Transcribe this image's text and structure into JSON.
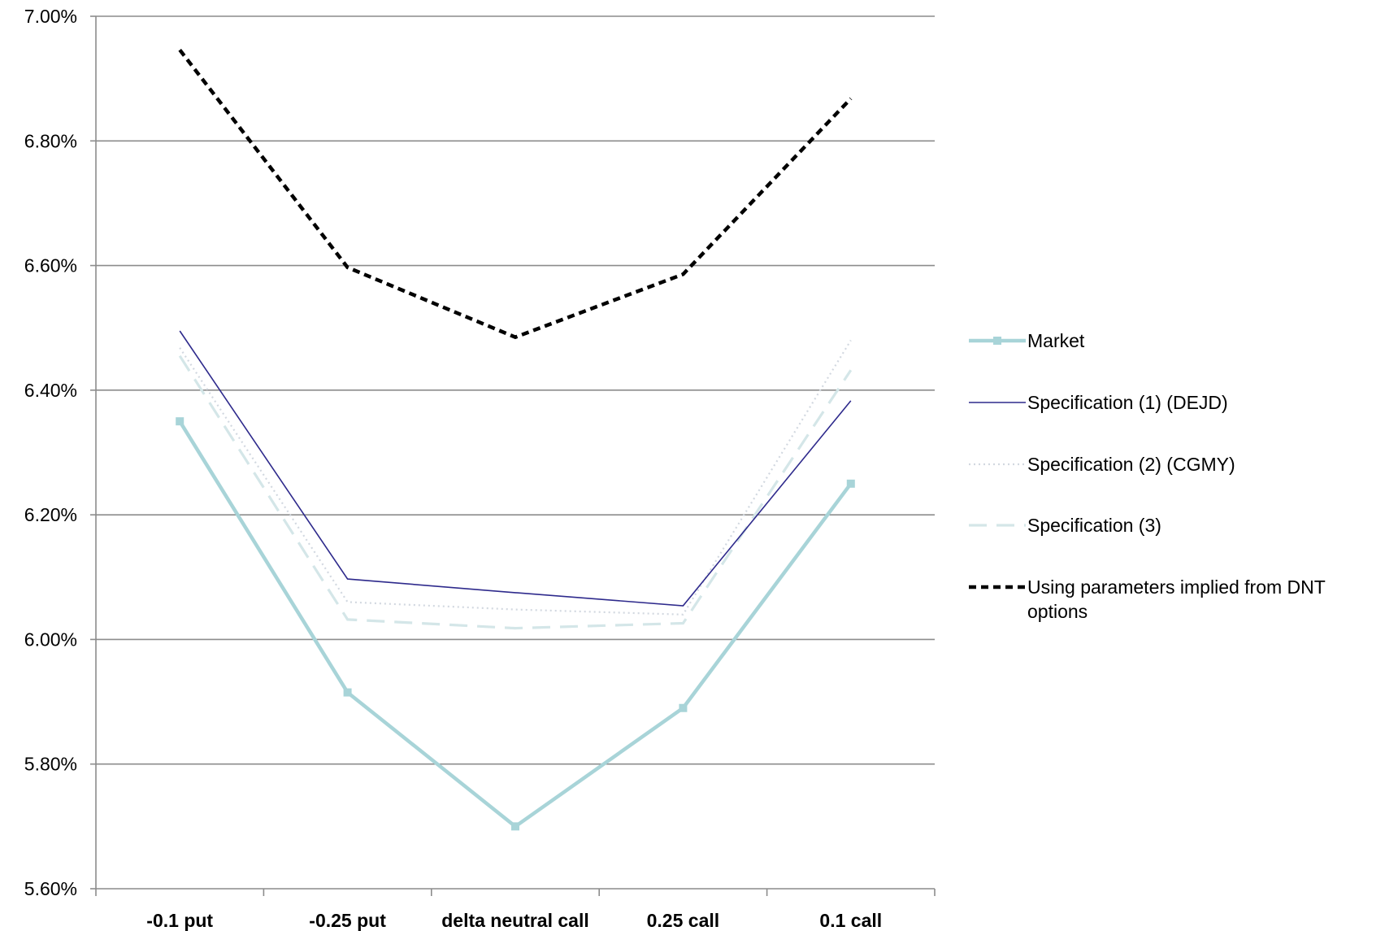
{
  "chart_data": {
    "type": "line",
    "title": "",
    "xlabel": "",
    "ylabel": "",
    "categories": [
      "-0.1 put",
      "-0.25 put",
      "delta neutral call",
      "0.25 call",
      "0.1 call"
    ],
    "y_ticks": [
      "5.60%",
      "5.80%",
      "6.00%",
      "6.20%",
      "6.40%",
      "6.60%",
      "6.80%",
      "7.00%"
    ],
    "ylim": [
      5.6,
      7.0
    ],
    "grid": true,
    "legend_position": "right",
    "series": [
      {
        "name": "Market",
        "values": [
          6.35,
          5.915,
          5.7,
          5.89,
          6.25
        ],
        "color": "#a8d4d8",
        "style": "solid-markers"
      },
      {
        "name": "Specification (1) (DEJD)",
        "values": [
          6.495,
          6.097,
          6.075,
          6.054,
          6.383
        ],
        "color": "#2e2a8c",
        "style": "thin-solid"
      },
      {
        "name": "Specification (2) (CGMY)",
        "values": [
          6.468,
          6.06,
          6.048,
          6.04,
          6.48
        ],
        "color": "#d2d8e0",
        "style": "dotted"
      },
      {
        "name": "Specification (3)",
        "values": [
          6.455,
          6.032,
          6.018,
          6.026,
          6.432
        ],
        "color": "#d4e6e8",
        "style": "long-dash"
      },
      {
        "name": "Using parameters implied from DNT options",
        "values": [
          6.946,
          6.597,
          6.485,
          6.586,
          6.868
        ],
        "color": "#000000",
        "style": "short-dash"
      }
    ]
  }
}
